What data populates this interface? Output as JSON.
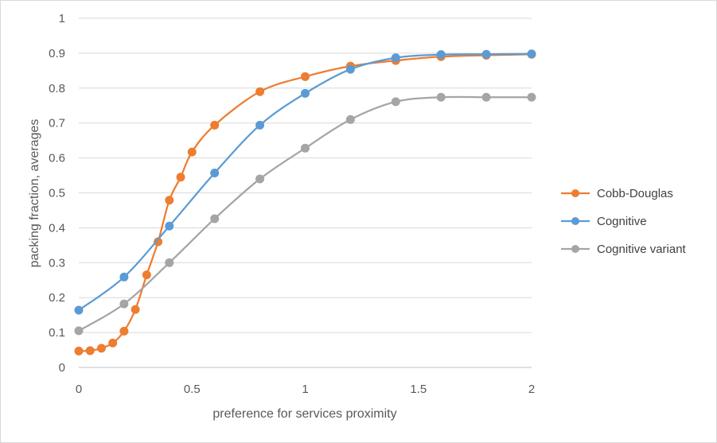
{
  "chart_data": {
    "type": "scatter",
    "title": "",
    "xlabel": "preference for services proximity",
    "ylabel": "packing fraction, averages",
    "xlim": [
      0,
      2
    ],
    "ylim": [
      0,
      1
    ],
    "x_ticks": [
      0,
      0.5,
      1,
      1.5,
      2
    ],
    "x_tick_labels": [
      "0",
      "0.5",
      "1",
      "1.5",
      "2"
    ],
    "y_ticks": [
      0,
      0.1,
      0.2,
      0.3,
      0.4,
      0.5,
      0.6,
      0.7,
      0.8,
      0.9,
      1
    ],
    "y_tick_labels": [
      "0",
      "0.1",
      "0.2",
      "0.3",
      "0.4",
      "0.5",
      "0.6",
      "0.7",
      "0.8",
      "0.9",
      "1"
    ],
    "grid": "horizontal",
    "legend_position": "right",
    "line_style": "smooth",
    "series": [
      {
        "name": "Cobb-Douglas",
        "color": "#ED7D31",
        "x": [
          0,
          0.05,
          0.1,
          0.15,
          0.2,
          0.25,
          0.3,
          0.35,
          0.4,
          0.45,
          0.5,
          0.6,
          0.8,
          1.0,
          1.2,
          1.4,
          1.6,
          1.8,
          2.0
        ],
        "y": [
          0.047,
          0.048,
          0.055,
          0.07,
          0.104,
          0.166,
          0.265,
          0.36,
          0.479,
          0.545,
          0.617,
          0.694,
          0.79,
          0.833,
          0.863,
          0.879,
          0.89,
          0.894,
          0.897
        ]
      },
      {
        "name": "Cognitive",
        "color": "#5B9BD5",
        "x": [
          0,
          0.2,
          0.4,
          0.6,
          0.8,
          1.0,
          1.2,
          1.4,
          1.6,
          1.8,
          2.0
        ],
        "y": [
          0.164,
          0.259,
          0.405,
          0.557,
          0.694,
          0.785,
          0.854,
          0.887,
          0.896,
          0.897,
          0.898
        ]
      },
      {
        "name": "Cognitive variant",
        "color": "#A5A5A5",
        "x": [
          0,
          0.2,
          0.4,
          0.6,
          0.8,
          1.0,
          1.2,
          1.4,
          1.6,
          1.8,
          2.0
        ],
        "y": [
          0.105,
          0.182,
          0.3,
          0.426,
          0.54,
          0.628,
          0.71,
          0.761,
          0.774,
          0.774,
          0.774
        ]
      }
    ]
  }
}
